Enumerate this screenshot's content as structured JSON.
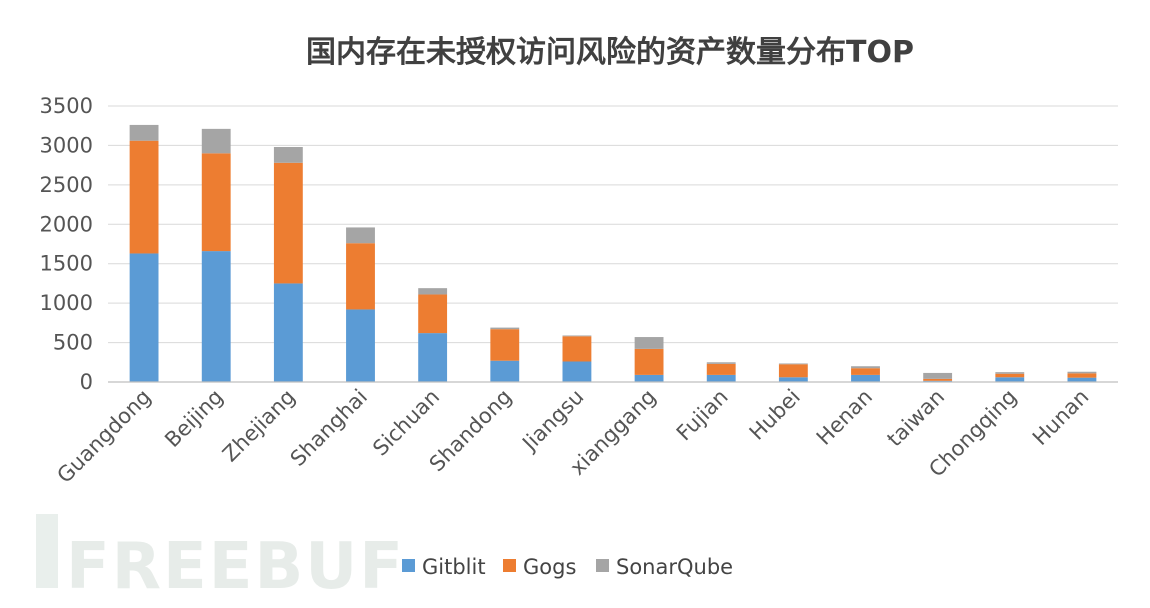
{
  "watermark": "FREEBUF",
  "chart_data": {
    "type": "bar",
    "stacked": true,
    "title": "国内存在未授权访问风险的资产数量分布TOP",
    "xlabel": "",
    "ylabel": "",
    "ylim": [
      0,
      3500
    ],
    "yticks": [
      0,
      500,
      1000,
      1500,
      2000,
      2500,
      3000,
      3500
    ],
    "grid": true,
    "legend_position": "bottom",
    "categories": [
      "Guangdong",
      "Beijing",
      "Zhejiang",
      "Shanghai",
      "Sichuan",
      "Shandong",
      "Jiangsu",
      "xianggang",
      "Fujian",
      "Hubei",
      "Henan",
      "taiwan",
      "Chongqing",
      "Hunan"
    ],
    "series": [
      {
        "name": "Gitblit",
        "color": "#5b9bd5",
        "values": [
          1630,
          1660,
          1250,
          920,
          620,
          270,
          260,
          90,
          90,
          60,
          90,
          15,
          60,
          55
        ]
      },
      {
        "name": "Gogs",
        "color": "#ed7d31",
        "values": [
          1430,
          1240,
          1530,
          840,
          490,
          400,
          320,
          330,
          140,
          165,
          85,
          25,
          45,
          55
        ]
      },
      {
        "name": "SonarQube",
        "color": "#a5a5a5",
        "values": [
          200,
          310,
          200,
          200,
          80,
          20,
          10,
          150,
          20,
          10,
          25,
          75,
          20,
          20
        ]
      }
    ]
  }
}
